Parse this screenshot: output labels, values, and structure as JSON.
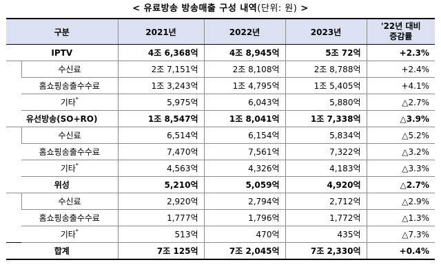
{
  "title": "< 유료방송 방송매출 구성 내역",
  "title_unit": "(단위: 원)",
  "title_tail": " >",
  "headers": {
    "category": "구분",
    "y2021": "2021년",
    "y2022": "2022년",
    "y2023": "2023년",
    "change_line1": "'22년 대비",
    "change_line2": "증감률"
  },
  "rows": [
    {
      "label": "IPTV",
      "y2021": "4조 6,368억",
      "y2022": "4조 8,945억",
      "y2023": "5조 72억",
      "change": "+2.3%"
    },
    {
      "label": "수신료",
      "y2021": "2조 7,151억",
      "y2022": "2조 8,108억",
      "y2023": "2조 8,788억",
      "change": "+2.4%"
    },
    {
      "label": "홈쇼핑송출수수료",
      "y2021": "1조 3,243억",
      "y2022": "1조 4,795억",
      "y2023": "1조 5,405억",
      "change": "+4.1%"
    },
    {
      "label": "기타",
      "y2021": "5,975억",
      "y2022": "6,043억",
      "y2023": "5,880억",
      "change": "△2.7%"
    },
    {
      "label": "유선방송(SO+RO)",
      "y2021": "1조 8,547억",
      "y2022": "1조 8,041억",
      "y2023": "1조 7,338억",
      "change": "△3.9%"
    },
    {
      "label": "수신료",
      "y2021": "6,514억",
      "y2022": "6,154억",
      "y2023": "5,834억",
      "change": "△5.2%"
    },
    {
      "label": "홈쇼핑송출수수료",
      "y2021": "7,470억",
      "y2022": "7,561억",
      "y2023": "7,322억",
      "change": "△3.2%"
    },
    {
      "label": "기타",
      "y2021": "4,563억",
      "y2022": "4,326억",
      "y2023": "4,183억",
      "change": "△3.3%"
    },
    {
      "label": "위성",
      "y2021": "5,210억",
      "y2022": "5,059억",
      "y2023": "4,920억",
      "change": "△2.7%"
    },
    {
      "label": "수신료",
      "y2021": "2,920억",
      "y2022": "2,794억",
      "y2023": "2,712억",
      "change": "△2.9%"
    },
    {
      "label": "홈쇼핑송출수수료",
      "y2021": "1,777억",
      "y2022": "1,796억",
      "y2023": "1,772억",
      "change": "△1.3%"
    },
    {
      "label": "기타",
      "y2021": "513억",
      "y2022": "470억",
      "y2023": "435억",
      "change": "△7.3%"
    },
    {
      "label": "합계",
      "y2021": "7조 125억",
      "y2022": "7조 2,045억",
      "y2023": "7조 2,330억",
      "change": "+0.4%"
    }
  ],
  "footnote_mark": "*"
}
